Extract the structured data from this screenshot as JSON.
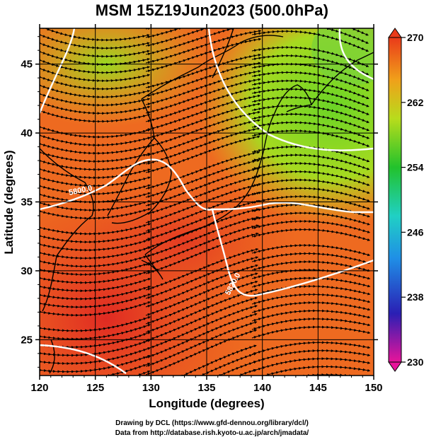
{
  "title": "MSM 15Z19Jun2023 (500.0hPa)",
  "axes": {
    "xlabel": "Longitude (degrees)",
    "ylabel": "Latitude  (degrees)",
    "x_ticks": [
      "120",
      "125",
      "130",
      "135",
      "140",
      "145",
      "150"
    ],
    "y_ticks": [
      "25",
      "30",
      "35",
      "40",
      "45"
    ],
    "xlim": [
      120,
      150
    ],
    "ylim": [
      22.4,
      47.6
    ]
  },
  "colorbar": {
    "labels": [
      "270",
      "262",
      "254",
      "246",
      "238",
      "230"
    ],
    "range": [
      230,
      270
    ],
    "stops": [
      "#e8149a",
      "#2a1fb4",
      "#1f8fe6",
      "#20d0c4",
      "#22c22c",
      "#b8dc1c",
      "#f0a01a",
      "#ea3a1a"
    ]
  },
  "contours": [
    {
      "label": "5800.0"
    },
    {
      "label": "5820.0"
    }
  ],
  "credits": {
    "line1": "Drawing by DCL (https://www.gfd-dennou.org/library/dcl/)",
    "line2": "Data from http://database.rish.kyoto-u.ac.jp/arch/jmadata/"
  },
  "chart_data": {
    "type": "heatmap",
    "title": "MSM 15Z19Jun2023 (500.0hPa)",
    "xlabel": "Longitude (degrees)",
    "ylabel": "Latitude  (degrees)",
    "xlim": [
      120,
      150
    ],
    "ylim": [
      22.4,
      47.6
    ],
    "grid": true,
    "colorbar_range": [
      230,
      270
    ],
    "colorbar_ticks": [
      270,
      262,
      254,
      246,
      238,
      230
    ],
    "contour_levels": [
      5800,
      5820
    ],
    "overlay": "streamlines"
  }
}
